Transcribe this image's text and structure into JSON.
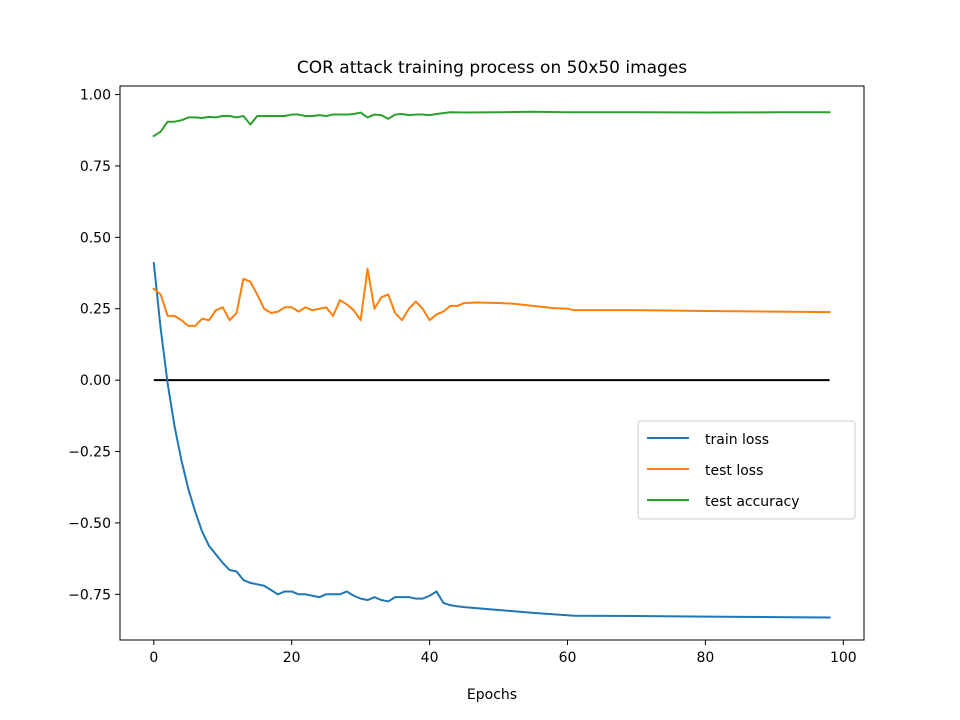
{
  "chart_data": {
    "type": "line",
    "title": "COR attack training process on 50x50 images",
    "xlabel": "Epochs",
    "ylabel": "",
    "xlim": [
      -4.9,
      103
    ],
    "ylim": [
      -0.91,
      1.03
    ],
    "xticks": [
      0,
      20,
      40,
      60,
      80,
      100
    ],
    "yticks": [
      -0.75,
      -0.5,
      -0.25,
      0.0,
      0.25,
      0.5,
      0.75,
      1.0
    ],
    "xtick_labels": [
      "0",
      "20",
      "40",
      "60",
      "80",
      "100"
    ],
    "ytick_labels": [
      "−0.75",
      "−0.50",
      "−0.25",
      "0.00",
      "0.25",
      "0.50",
      "0.75",
      "1.00"
    ],
    "grid": false,
    "legend_position": "center-right",
    "baseline": {
      "y": 0.0,
      "x_from": 0,
      "x_to": 98,
      "color": "#000000"
    },
    "series": [
      {
        "name": "train loss",
        "color": "#1f77b4",
        "points": [
          [
            0,
            0.41
          ],
          [
            1,
            0.18
          ],
          [
            2,
            -0.01
          ],
          [
            3,
            -0.16
          ],
          [
            4,
            -0.28
          ],
          [
            5,
            -0.38
          ],
          [
            6,
            -0.46
          ],
          [
            7,
            -0.53
          ],
          [
            8,
            -0.58
          ],
          [
            9,
            -0.61
          ],
          [
            10,
            -0.64
          ],
          [
            11,
            -0.665
          ],
          [
            12,
            -0.67
          ],
          [
            13,
            -0.7
          ],
          [
            14,
            -0.71
          ],
          [
            15,
            -0.715
          ],
          [
            16,
            -0.72
          ],
          [
            17,
            -0.735
          ],
          [
            18,
            -0.75
          ],
          [
            19,
            -0.74
          ],
          [
            20,
            -0.74
          ],
          [
            21,
            -0.75
          ],
          [
            22,
            -0.75
          ],
          [
            23,
            -0.755
          ],
          [
            24,
            -0.76
          ],
          [
            25,
            -0.75
          ],
          [
            26,
            -0.75
          ],
          [
            27,
            -0.75
          ],
          [
            28,
            -0.74
          ],
          [
            29,
            -0.755
          ],
          [
            30,
            -0.765
          ],
          [
            31,
            -0.77
          ],
          [
            32,
            -0.76
          ],
          [
            33,
            -0.77
          ],
          [
            34,
            -0.775
          ],
          [
            35,
            -0.76
          ],
          [
            36,
            -0.76
          ],
          [
            37,
            -0.76
          ],
          [
            38,
            -0.765
          ],
          [
            39,
            -0.765
          ],
          [
            40,
            -0.755
          ],
          [
            41,
            -0.74
          ],
          [
            42,
            -0.78
          ],
          [
            43,
            -0.788
          ],
          [
            44,
            -0.792
          ],
          [
            45,
            -0.795
          ],
          [
            50,
            -0.805
          ],
          [
            55,
            -0.815
          ],
          [
            61,
            -0.825
          ],
          [
            70,
            -0.826
          ],
          [
            80,
            -0.828
          ],
          [
            90,
            -0.83
          ],
          [
            98,
            -0.831
          ]
        ]
      },
      {
        "name": "test loss",
        "color": "#ff7f0e",
        "points": [
          [
            0,
            0.32
          ],
          [
            1,
            0.3
          ],
          [
            2,
            0.225
          ],
          [
            3,
            0.225
          ],
          [
            4,
            0.21
          ],
          [
            5,
            0.19
          ],
          [
            6,
            0.19
          ],
          [
            7,
            0.215
          ],
          [
            8,
            0.21
          ],
          [
            9,
            0.245
          ],
          [
            10,
            0.255
          ],
          [
            11,
            0.21
          ],
          [
            12,
            0.235
          ],
          [
            13,
            0.355
          ],
          [
            14,
            0.345
          ],
          [
            15,
            0.3
          ],
          [
            16,
            0.25
          ],
          [
            17,
            0.235
          ],
          [
            18,
            0.24
          ],
          [
            19,
            0.255
          ],
          [
            20,
            0.255
          ],
          [
            21,
            0.24
          ],
          [
            22,
            0.255
          ],
          [
            23,
            0.245
          ],
          [
            24,
            0.25
          ],
          [
            25,
            0.255
          ],
          [
            26,
            0.225
          ],
          [
            27,
            0.28
          ],
          [
            28,
            0.265
          ],
          [
            29,
            0.245
          ],
          [
            30,
            0.21
          ],
          [
            31,
            0.39
          ],
          [
            32,
            0.25
          ],
          [
            33,
            0.29
          ],
          [
            34,
            0.3
          ],
          [
            35,
            0.235
          ],
          [
            36,
            0.21
          ],
          [
            37,
            0.25
          ],
          [
            38,
            0.275
          ],
          [
            39,
            0.25
          ],
          [
            40,
            0.21
          ],
          [
            41,
            0.23
          ],
          [
            42,
            0.24
          ],
          [
            43,
            0.26
          ],
          [
            44,
            0.26
          ],
          [
            45,
            0.27
          ],
          [
            47,
            0.272
          ],
          [
            50,
            0.27
          ],
          [
            52,
            0.268
          ],
          [
            55,
            0.26
          ],
          [
            58,
            0.252
          ],
          [
            60,
            0.25
          ],
          [
            61,
            0.245
          ],
          [
            70,
            0.245
          ],
          [
            80,
            0.242
          ],
          [
            90,
            0.24
          ],
          [
            98,
            0.238
          ]
        ]
      },
      {
        "name": "test accuracy",
        "color": "#2ca02c",
        "points": [
          [
            0,
            0.855
          ],
          [
            1,
            0.87
          ],
          [
            2,
            0.905
          ],
          [
            3,
            0.905
          ],
          [
            4,
            0.91
          ],
          [
            5,
            0.92
          ],
          [
            6,
            0.92
          ],
          [
            7,
            0.918
          ],
          [
            8,
            0.922
          ],
          [
            9,
            0.92
          ],
          [
            10,
            0.925
          ],
          [
            11,
            0.925
          ],
          [
            12,
            0.92
          ],
          [
            13,
            0.925
          ],
          [
            14,
            0.895
          ],
          [
            15,
            0.925
          ],
          [
            16,
            0.925
          ],
          [
            17,
            0.925
          ],
          [
            18,
            0.925
          ],
          [
            19,
            0.925
          ],
          [
            20,
            0.93
          ],
          [
            21,
            0.93
          ],
          [
            22,
            0.925
          ],
          [
            23,
            0.925
          ],
          [
            24,
            0.928
          ],
          [
            25,
            0.925
          ],
          [
            26,
            0.93
          ],
          [
            27,
            0.93
          ],
          [
            28,
            0.93
          ],
          [
            29,
            0.932
          ],
          [
            30,
            0.937
          ],
          [
            31,
            0.92
          ],
          [
            32,
            0.93
          ],
          [
            33,
            0.928
          ],
          [
            34,
            0.915
          ],
          [
            35,
            0.93
          ],
          [
            36,
            0.932
          ],
          [
            37,
            0.928
          ],
          [
            38,
            0.93
          ],
          [
            39,
            0.93
          ],
          [
            40,
            0.928
          ],
          [
            41,
            0.932
          ],
          [
            42,
            0.935
          ],
          [
            43,
            0.938
          ],
          [
            45,
            0.937
          ],
          [
            50,
            0.938
          ],
          [
            55,
            0.94
          ],
          [
            60,
            0.938
          ],
          [
            70,
            0.938
          ],
          [
            80,
            0.937
          ],
          [
            90,
            0.938
          ],
          [
            98,
            0.938
          ]
        ]
      }
    ]
  }
}
